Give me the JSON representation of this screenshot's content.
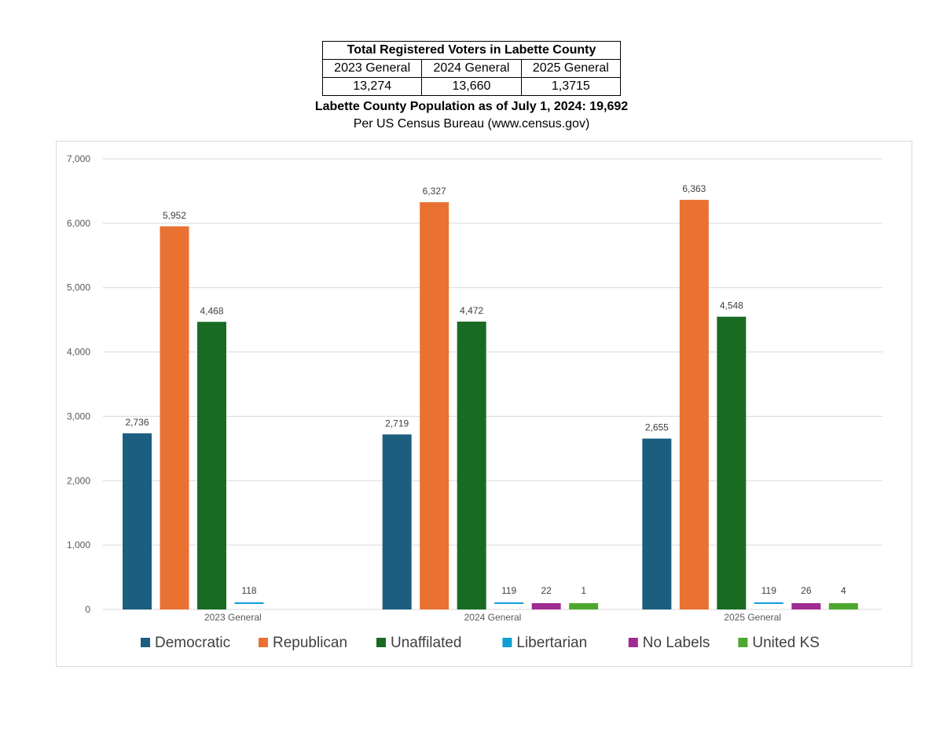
{
  "voter_table": {
    "title": "Total Registered Voters in Labette County",
    "headers": [
      "2023 General",
      "2024 General",
      "2025 General"
    ],
    "values": [
      "13,274",
      "13,660",
      "1,3715"
    ]
  },
  "population": {
    "title": "Labette County Population as of July 1, 2024:  19,692",
    "source": "Per US Census Bureau (www.census.gov)"
  },
  "chart_data": {
    "type": "bar",
    "title": "",
    "xlabel": "",
    "ylabel": "",
    "ylim": [
      0,
      7000
    ],
    "y_ticks": [
      0,
      1000,
      2000,
      3000,
      4000,
      5000,
      6000,
      7000
    ],
    "y_tick_labels": [
      "0",
      "1,000",
      "2,000",
      "3,000",
      "4,000",
      "5,000",
      "6,000",
      "7,000"
    ],
    "grid": true,
    "legend_position": "bottom",
    "categories": [
      "2023 General",
      "2024 General",
      "2025 General"
    ],
    "series": [
      {
        "name": "Democratic",
        "color": "#1b5e80",
        "values": [
          2736,
          2719,
          2655
        ],
        "labels": [
          "2,736",
          "2,719",
          "2,655"
        ]
      },
      {
        "name": "Republican",
        "color": "#e97132",
        "values": [
          5952,
          6327,
          6363
        ],
        "labels": [
          "5,952",
          "6,327",
          "6,363"
        ]
      },
      {
        "name": "Unaffilated",
        "color": "#196b24",
        "values": [
          4468,
          4472,
          4548
        ],
        "labels": [
          "4,468",
          "4,472",
          "4,548"
        ]
      },
      {
        "name": "Libertarian",
        "color": "#0f9ed5",
        "values": [
          118,
          119,
          119
        ],
        "labels": [
          "118",
          "119",
          "119"
        ]
      },
      {
        "name": "No Labels",
        "color": "#a02b93",
        "values": [
          null,
          22,
          26
        ],
        "labels": [
          null,
          "22",
          "26"
        ]
      },
      {
        "name": "United KS",
        "color": "#4ea72e",
        "values": [
          null,
          1,
          4
        ],
        "labels": [
          null,
          "1",
          "4"
        ]
      }
    ]
  }
}
